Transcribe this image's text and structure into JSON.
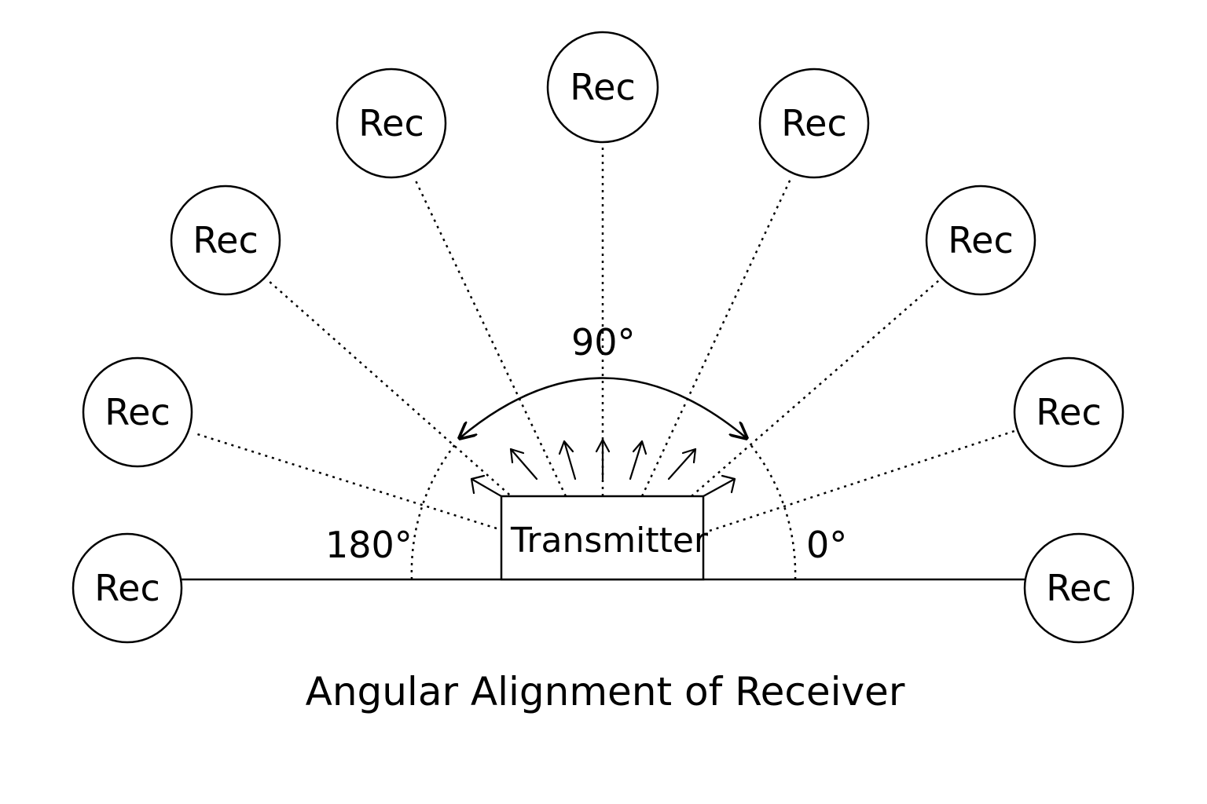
{
  "diagram": {
    "caption": "Angular Alignment of Receiver",
    "transmitter_label": "Transmitter",
    "angles": {
      "deg_90": "90°",
      "deg_180": "180°",
      "deg_0": "0°"
    },
    "receivers": [
      {
        "label": "Rec"
      },
      {
        "label": "Rec"
      },
      {
        "label": "Rec"
      },
      {
        "label": "Rec"
      },
      {
        "label": "Rec"
      },
      {
        "label": "Rec"
      },
      {
        "label": "Rec"
      },
      {
        "label": "Rec"
      },
      {
        "label": "Rec"
      }
    ]
  }
}
